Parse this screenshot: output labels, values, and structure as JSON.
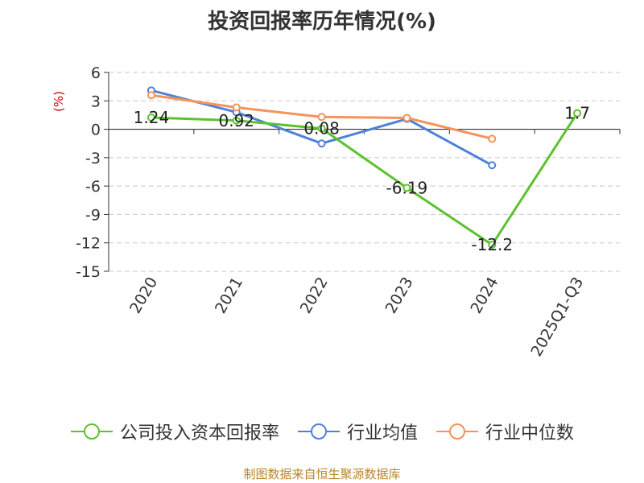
{
  "header": {
    "title": "投资回报率历年情况(%)"
  },
  "chart_data": {
    "type": "line",
    "title": "投资回报率历年情况(%)",
    "ylabel": "(%)",
    "categories": [
      "2020",
      "2021",
      "2022",
      "2023",
      "2024",
      "2025Q1-Q3"
    ],
    "y_ticks": [
      6,
      3,
      0,
      -3,
      -6,
      -9,
      -12,
      -15
    ],
    "ylim": [
      -15,
      6
    ],
    "grid": true,
    "legend_position": "bottom",
    "series": [
      {
        "name": "公司投入资本回报率",
        "color": "#5cc22f",
        "values": [
          1.24,
          0.92,
          0.08,
          -6.19,
          -12.2,
          1.7
        ],
        "data_labels": [
          "1.24",
          "0.92",
          "0.08",
          "-6.19",
          "-12.2",
          "1.7"
        ]
      },
      {
        "name": "行业均值",
        "color": "#4f81d8",
        "values": [
          4.1,
          1.8,
          -1.5,
          1.1,
          -3.8,
          null
        ]
      },
      {
        "name": "行业中位数",
        "color": "#f5935a",
        "values": [
          3.6,
          2.3,
          1.3,
          1.2,
          -1.0,
          null
        ]
      }
    ]
  },
  "footer": {
    "source": "制图数据来自恒生聚源数据库"
  }
}
